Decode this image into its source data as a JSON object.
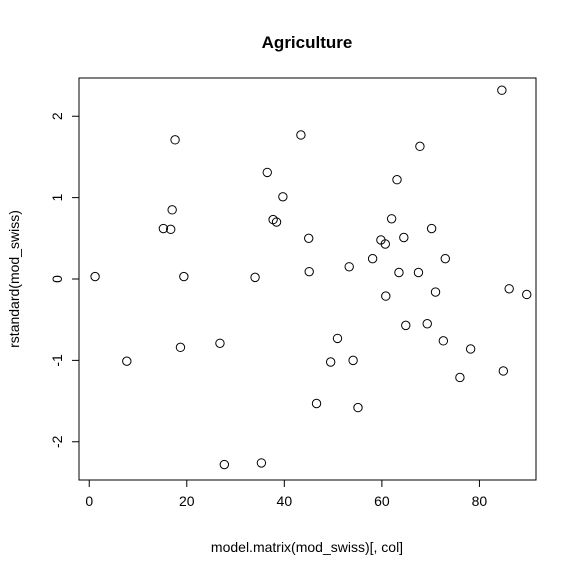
{
  "chart_data": {
    "type": "scatter",
    "title": "Agriculture",
    "xlabel": "model.matrix(mod_swiss)[, col]",
    "ylabel": "rstandard(mod_swiss)",
    "xlim": [
      -2.1,
      91.6
    ],
    "ylim": [
      -2.47,
      2.47
    ],
    "xticks": [
      0,
      20,
      40,
      60,
      80
    ],
    "yticks": [
      -2,
      -1,
      0,
      1,
      2
    ],
    "grid": false,
    "points": [
      {
        "x": 1.2,
        "y": 0.03
      },
      {
        "x": 7.7,
        "y": -1.01
      },
      {
        "x": 15.2,
        "y": 0.62
      },
      {
        "x": 16.7,
        "y": 0.61
      },
      {
        "x": 17.0,
        "y": 0.85
      },
      {
        "x": 17.6,
        "y": 1.71
      },
      {
        "x": 18.7,
        "y": -0.84
      },
      {
        "x": 19.4,
        "y": 0.03
      },
      {
        "x": 26.8,
        "y": -0.79
      },
      {
        "x": 27.7,
        "y": -2.28
      },
      {
        "x": 34.0,
        "y": 0.02
      },
      {
        "x": 35.3,
        "y": -2.26
      },
      {
        "x": 36.5,
        "y": 1.31
      },
      {
        "x": 37.7,
        "y": 0.73
      },
      {
        "x": 38.4,
        "y": 0.7
      },
      {
        "x": 39.7,
        "y": 1.01
      },
      {
        "x": 43.4,
        "y": 1.77
      },
      {
        "x": 45.0,
        "y": 0.5
      },
      {
        "x": 45.1,
        "y": 0.09
      },
      {
        "x": 46.6,
        "y": -1.53
      },
      {
        "x": 49.5,
        "y": -1.02
      },
      {
        "x": 50.9,
        "y": -0.73
      },
      {
        "x": 53.3,
        "y": 0.15
      },
      {
        "x": 54.1,
        "y": -1.0
      },
      {
        "x": 55.1,
        "y": -1.58
      },
      {
        "x": 58.1,
        "y": 0.25
      },
      {
        "x": 59.8,
        "y": 0.48
      },
      {
        "x": 60.7,
        "y": 0.43
      },
      {
        "x": 60.8,
        "y": -0.21
      },
      {
        "x": 62.0,
        "y": 0.74
      },
      {
        "x": 63.1,
        "y": 1.22
      },
      {
        "x": 63.5,
        "y": 0.08
      },
      {
        "x": 64.5,
        "y": 0.51
      },
      {
        "x": 64.9,
        "y": -0.57
      },
      {
        "x": 67.5,
        "y": 0.08
      },
      {
        "x": 67.8,
        "y": 1.63
      },
      {
        "x": 69.3,
        "y": -0.55
      },
      {
        "x": 70.2,
        "y": 0.62
      },
      {
        "x": 71.0,
        "y": -0.16
      },
      {
        "x": 72.6,
        "y": -0.76
      },
      {
        "x": 73.0,
        "y": 0.25
      },
      {
        "x": 76.0,
        "y": -1.21
      },
      {
        "x": 78.2,
        "y": -0.86
      },
      {
        "x": 84.6,
        "y": 2.32
      },
      {
        "x": 84.9,
        "y": -1.13
      },
      {
        "x": 86.1,
        "y": -0.12
      },
      {
        "x": 89.7,
        "y": -0.19
      }
    ]
  }
}
